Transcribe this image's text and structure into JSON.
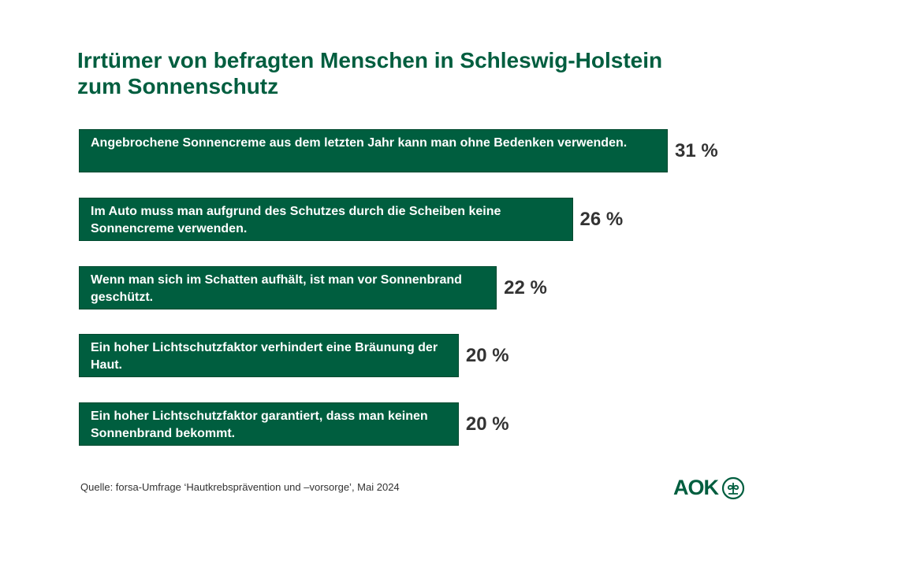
{
  "chart_data": {
    "type": "bar",
    "orientation": "horizontal",
    "title": "Irrtümer von befragten Menschen in Schleswig-Holstein zum Sonnenschutz",
    "title_lines": [
      "Irrtümer von befragten Menschen in Schleswig-Holstein",
      "zum Sonnenschutz"
    ],
    "categories": [
      "Angebrochene Sonnencreme aus dem letzten Jahr kann  man ohne Bedenken verwenden.",
      "Im Auto muss man aufgrund des Schutzes durch die Scheiben keine Sonnencreme verwenden.",
      "Wenn man sich im Schatten aufhält, ist man vor Sonnenbrand geschützt.",
      "Ein hoher Lichtschutzfaktor verhindert eine Bräunung der Haut.",
      "Ein hoher Lichtschutzfaktor garantiert, dass man keinen Sonnenbrand bekommt."
    ],
    "values": [
      31,
      26,
      22,
      20,
      20
    ],
    "value_labels": [
      "31 %",
      "26 %",
      "22 %",
      "20 %",
      "20 %"
    ],
    "unit": "%",
    "xlim": [
      0,
      31
    ],
    "bar_color": "#005e3f"
  },
  "source": "Quelle: forsa-Umfrage ‘Hautkrebsprävention und –vorsorge’, Mai 2024",
  "logo": {
    "text": "AOK"
  }
}
